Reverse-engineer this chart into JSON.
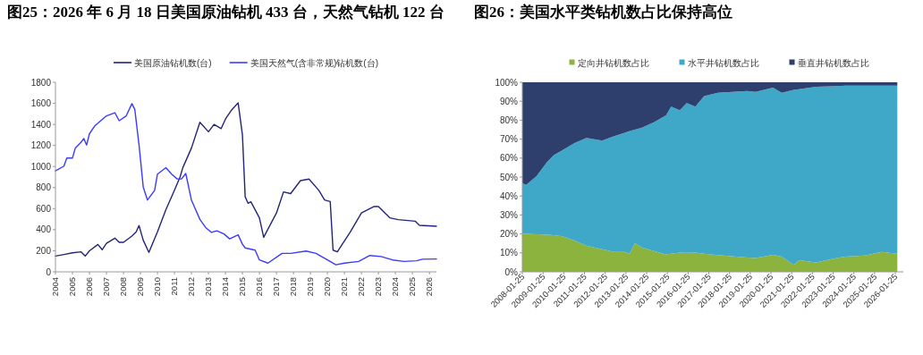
{
  "chart_data": [
    {
      "type": "line",
      "title": "图25：2026 年 6 月 18 日美国原油钻机 433 台，天然气钻机 122 台",
      "legend": "top",
      "xlim": [
        "2004",
        "2026-06"
      ],
      "xticks": [
        "2004",
        "2005",
        "2006",
        "2007",
        "2008",
        "2009",
        "2010",
        "2011",
        "2012",
        "2013",
        "2014",
        "2015",
        "2016",
        "2017",
        "2018",
        "2019",
        "2020",
        "2021",
        "2022",
        "2023",
        "2024",
        "2025",
        "2026"
      ],
      "ylim": [
        0,
        1800
      ],
      "yticks": [
        0,
        200,
        400,
        600,
        800,
        1000,
        1200,
        1400,
        1600,
        1800
      ],
      "series": [
        {
          "name": "美国原油钻机数(台)",
          "color": "#24257a",
          "x": [
            "2004-01",
            "2004-07",
            "2005-01",
            "2005-07",
            "2005-10",
            "2006-01",
            "2006-07",
            "2006-10",
            "2007-01",
            "2007-07",
            "2007-10",
            "2008-01",
            "2008-07",
            "2008-10",
            "2008-12",
            "2009-03",
            "2009-07",
            "2010-01",
            "2010-07",
            "2011-01",
            "2011-05",
            "2011-07",
            "2012-01",
            "2012-07",
            "2013-01",
            "2013-05",
            "2013-10",
            "2014-01",
            "2014-05",
            "2014-10",
            "2015-01",
            "2015-03",
            "2015-05",
            "2015-07",
            "2016-01",
            "2016-04",
            "2017-01",
            "2017-06",
            "2017-11",
            "2018-06",
            "2018-12",
            "2019-07",
            "2019-11",
            "2020-03",
            "2020-05",
            "2020-08",
            "2021-05",
            "2022-01",
            "2022-10",
            "2023-01",
            "2023-09",
            "2024-03",
            "2025-03",
            "2025-06",
            "2026-06"
          ],
          "values": [
            150,
            165,
            180,
            190,
            150,
            200,
            260,
            210,
            270,
            320,
            280,
            280,
            340,
            380,
            440,
            300,
            185,
            380,
            590,
            775,
            900,
            990,
            1175,
            1420,
            1330,
            1400,
            1360,
            1450,
            1530,
            1604,
            1300,
            712,
            651,
            666,
            513,
            328,
            559,
            759,
            743,
            866,
            881,
            774,
            682,
            668,
            206,
            190,
            374,
            559,
            620,
            620,
            513,
            496,
            481,
            442,
            433
          ]
        },
        {
          "name": "美国天然气(含非常规)钻机数(台)",
          "color": "#3b3bff",
          "x": [
            "2004-01",
            "2004-07",
            "2004-09",
            "2005-01",
            "2005-03",
            "2005-07",
            "2005-09",
            "2005-11",
            "2006-01",
            "2006-05",
            "2006-09",
            "2007-01",
            "2007-07",
            "2007-10",
            "2008-03",
            "2008-07",
            "2008-09",
            "2008-12",
            "2009-03",
            "2009-06",
            "2009-11",
            "2010-01",
            "2010-07",
            "2010-11",
            "2011-03",
            "2011-06",
            "2011-09",
            "2012-01",
            "2012-07",
            "2012-11",
            "2013-03",
            "2013-07",
            "2013-12",
            "2014-04",
            "2014-10",
            "2015-01",
            "2015-03",
            "2015-10",
            "2016-01",
            "2016-07",
            "2017-05",
            "2017-11",
            "2018-10",
            "2019-05",
            "2020-01",
            "2020-07",
            "2021-01",
            "2021-11",
            "2022-07",
            "2023-03",
            "2023-11",
            "2024-07",
            "2025-04",
            "2025-08",
            "2026-06"
          ],
          "values": [
            958,
            1004,
            1081,
            1081,
            1173,
            1229,
            1266,
            1204,
            1312,
            1389,
            1435,
            1481,
            1511,
            1435,
            1481,
            1597,
            1542,
            1204,
            805,
            682,
            774,
            928,
            989,
            928,
            882,
            882,
            934,
            682,
            498,
            421,
            375,
            390,
            360,
            313,
            351,
            262,
            227,
            206,
            113,
            83,
            175,
            175,
            197,
            175,
            113,
            67,
            83,
            99,
            155,
            145,
            113,
            99,
            105,
            120,
            122
          ]
        }
      ]
    },
    {
      "type": "area",
      "stacked": true,
      "title": "图26：美国水平类钻机数占比保持高位",
      "legend": "top",
      "xlim": [
        "2008-01-25",
        "2026-06-15"
      ],
      "xticks": [
        "2008-01-25",
        "2009-01-25",
        "2010-01-25",
        "2011-01-25",
        "2012-01-25",
        "2013-01-25",
        "2014-01-25",
        "2015-01-25",
        "2016-01-25",
        "2017-01-25",
        "2018-01-25",
        "2019-01-25",
        "2020-01-25",
        "2021-01-25",
        "2022-01-25",
        "2023-01-25",
        "2024-01-25",
        "2025-01-25",
        "2026-01-25"
      ],
      "ylim": [
        0,
        100
      ],
      "yticks": [
        {
          "value": 0,
          "label": "0%"
        },
        {
          "value": 10,
          "label": "10%"
        },
        {
          "value": 20,
          "label": "20%"
        },
        {
          "value": 30,
          "label": "30%"
        },
        {
          "value": 40,
          "label": "40%"
        },
        {
          "value": 50,
          "label": "50%"
        },
        {
          "value": 60,
          "label": "60%"
        },
        {
          "value": 70,
          "label": "70%"
        },
        {
          "value": 80,
          "label": "80%"
        },
        {
          "value": 90,
          "label": "90%"
        },
        {
          "value": 100,
          "label": "100%"
        }
      ],
      "x": [
        "2008-01-25",
        "2008-04",
        "2008-10",
        "2009-04",
        "2009-08",
        "2010-01",
        "2010-08",
        "2011-03",
        "2011-12",
        "2012-07",
        "2013-01",
        "2013-04",
        "2013-07",
        "2013-11",
        "2014-06",
        "2015-01",
        "2015-04",
        "2015-09",
        "2016-01",
        "2016-06",
        "2016-11",
        "2017-07",
        "2018-12",
        "2019-05",
        "2020-03",
        "2020-08",
        "2021-03",
        "2021-06",
        "2022-04",
        "2023-04",
        "2023-09",
        "2024-08",
        "2025-06",
        "2026-03"
      ],
      "series": [
        {
          "name": "定向井钻机数占比",
          "color": "#8db33f",
          "values": [
            20.2,
            20.0,
            19.8,
            19.6,
            19.3,
            18.7,
            16.5,
            13.8,
            11.9,
            10.5,
            10.5,
            9.7,
            15.2,
            12.8,
            11.0,
            9.2,
            9.5,
            10.1,
            10.0,
            10.1,
            9.5,
            8.8,
            7.5,
            7.3,
            9.0,
            8.0,
            3.7,
            6.1,
            5.0,
            7.3,
            8.0,
            8.6,
            10.5,
            9.5
          ]
        },
        {
          "name": "水平井钻机数占比",
          "color": "#3fa8c8",
          "values": [
            26.6,
            25.9,
            30.7,
            38.2,
            42.2,
            45.5,
            51.4,
            56.8,
            57.3,
            61.1,
            62.9,
            64.6,
            59.8,
            63.3,
            67.9,
            73.4,
            77.7,
            75.2,
            79.0,
            77.1,
            83.2,
            85.7,
            87.9,
            87.6,
            88.2,
            86.5,
            92.3,
            90.2,
            92.6,
            90.7,
            90.2,
            89.6,
            87.7,
            88.7
          ]
        },
        {
          "name": "垂直井钻机数占比",
          "color": "#2e3f6e",
          "values": [
            53.2,
            54.1,
            49.5,
            42.2,
            38.5,
            35.8,
            32.1,
            29.4,
            30.8,
            28.4,
            26.6,
            25.7,
            25.0,
            23.9,
            21.1,
            17.4,
            12.8,
            14.7,
            11.0,
            12.8,
            7.3,
            5.5,
            4.6,
            5.1,
            2.8,
            5.5,
            4.0,
            3.7,
            2.4,
            2.0,
            1.8,
            1.8,
            1.8,
            1.8
          ]
        }
      ]
    }
  ]
}
